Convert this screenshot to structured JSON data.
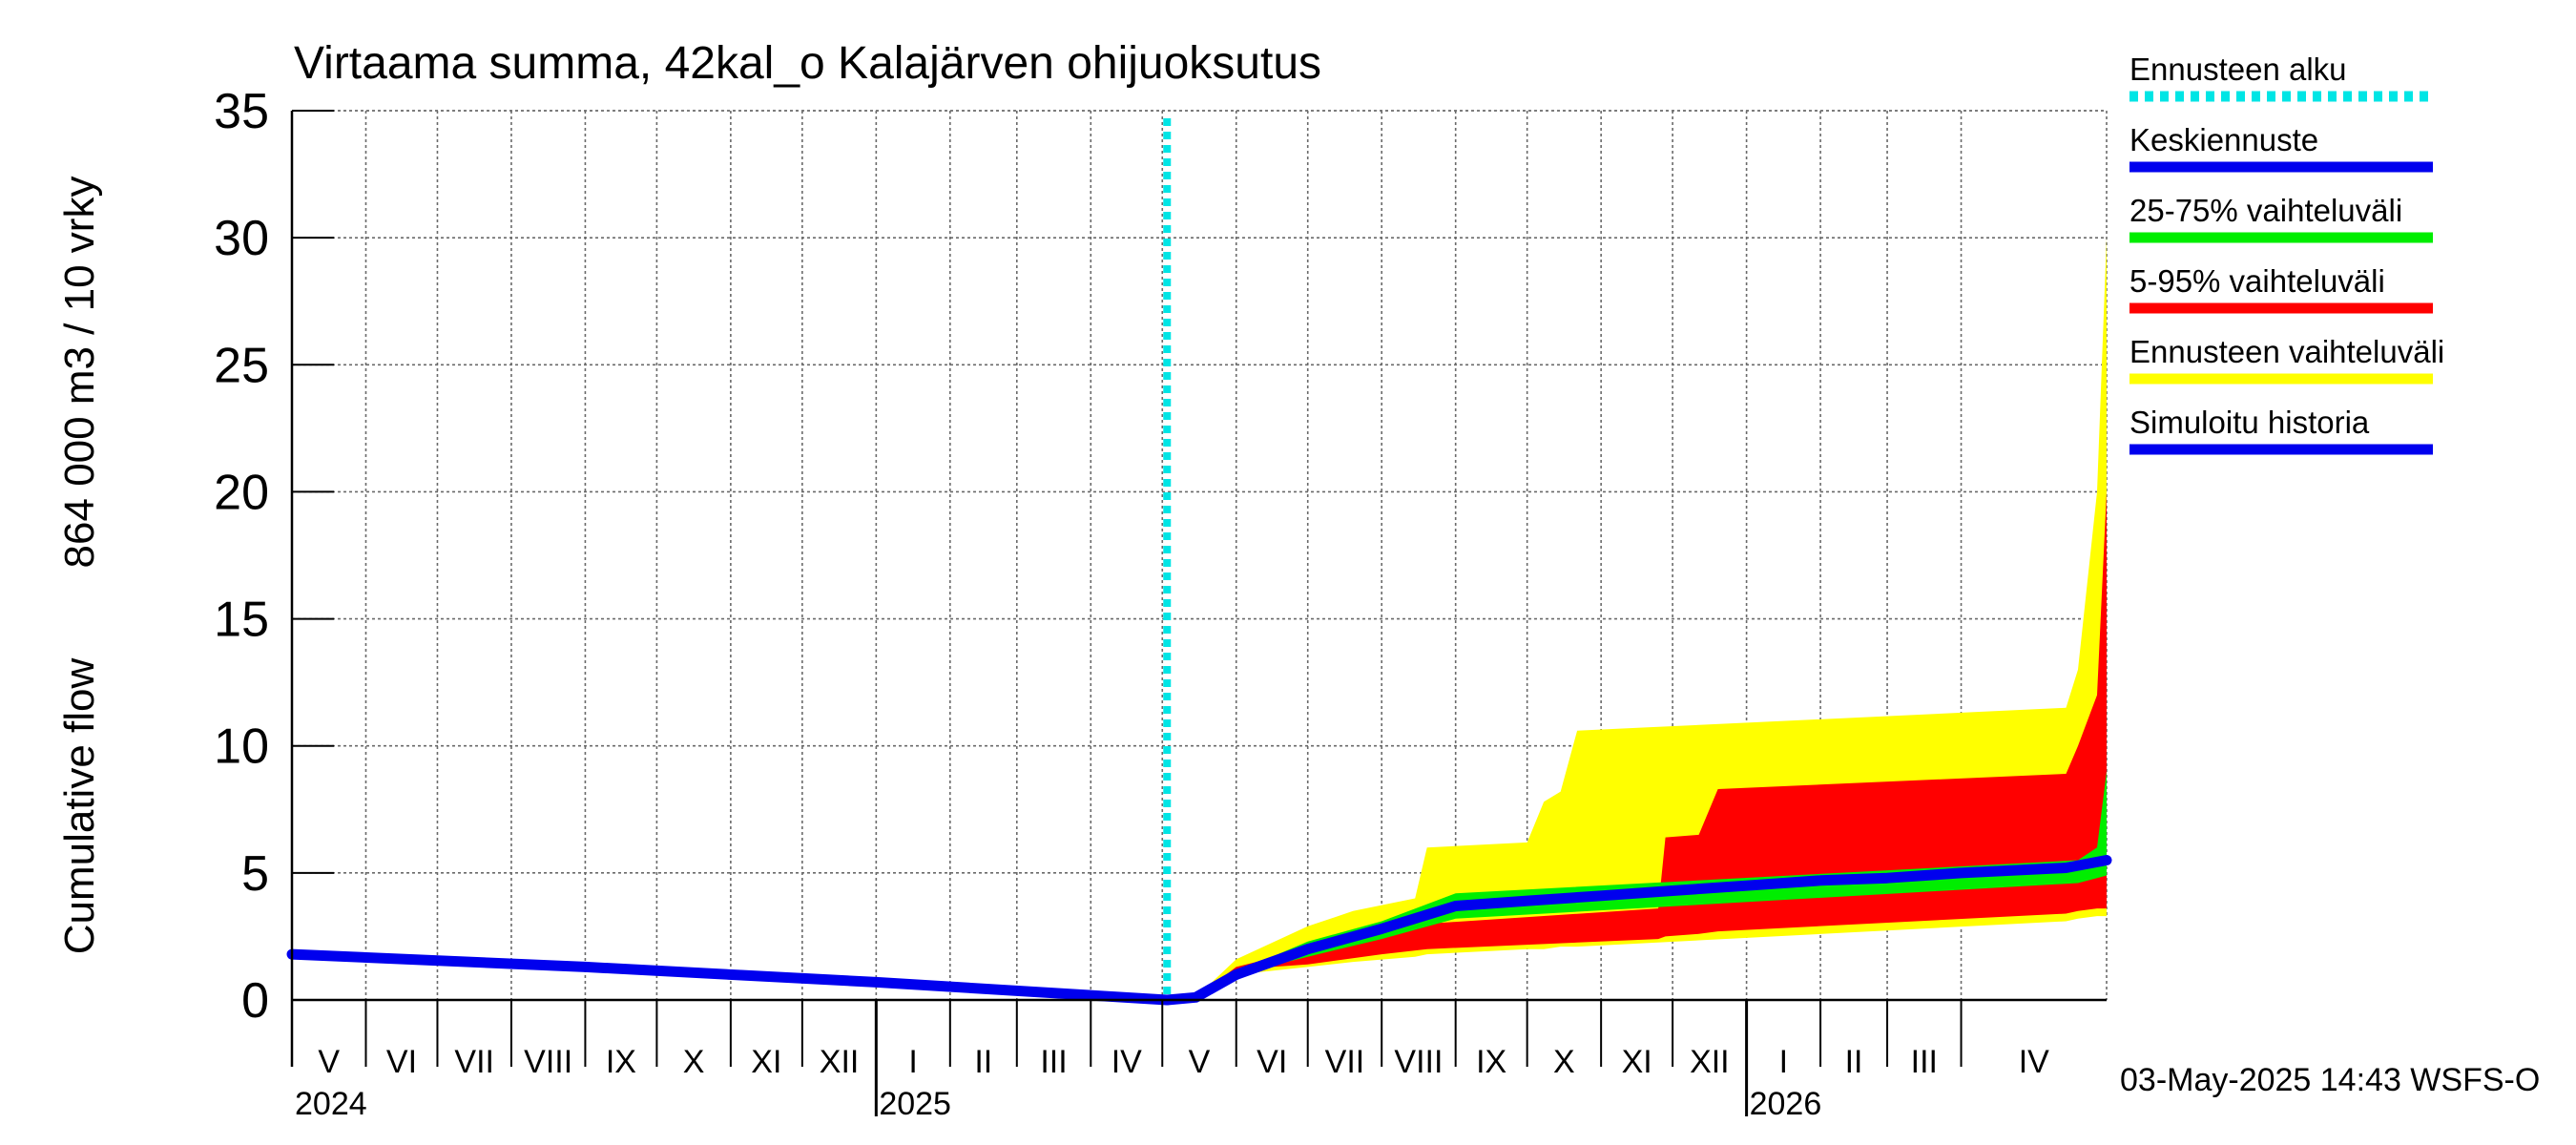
{
  "chart_data": {
    "type": "area",
    "title": "Virtaama summa, 42kal_o Kalajärven ohijuoksutus",
    "ylabel_line1": "Cumulative flow",
    "ylabel_line2": "864 000 m3 / 10 vrky",
    "ylim": [
      0,
      35
    ],
    "y_ticks": [
      0,
      5,
      10,
      15,
      20,
      25,
      30,
      35
    ],
    "xlim": [
      "2024-05-01",
      "2026-06-01"
    ],
    "grid": true,
    "months": [
      {
        "label": "V",
        "start": "2024-05-01"
      },
      {
        "label": "VI",
        "start": "2024-06-01"
      },
      {
        "label": "VII",
        "start": "2024-07-01"
      },
      {
        "label": "VIII",
        "start": "2024-08-01"
      },
      {
        "label": "IX",
        "start": "2024-09-01"
      },
      {
        "label": "X",
        "start": "2024-10-01"
      },
      {
        "label": "XI",
        "start": "2024-11-01"
      },
      {
        "label": "XII",
        "start": "2024-12-01"
      },
      {
        "label": "I",
        "start": "2025-01-01"
      },
      {
        "label": "II",
        "start": "2025-02-01"
      },
      {
        "label": "III",
        "start": "2025-03-01"
      },
      {
        "label": "IV",
        "start": "2025-04-01"
      },
      {
        "label": "V",
        "start": "2025-05-01"
      },
      {
        "label": "VI",
        "start": "2025-06-01"
      },
      {
        "label": "VII",
        "start": "2025-07-01"
      },
      {
        "label": "VIII",
        "start": "2025-08-01"
      },
      {
        "label": "IX",
        "start": "2025-09-01"
      },
      {
        "label": "X",
        "start": "2025-10-01"
      },
      {
        "label": "XI",
        "start": "2025-11-01"
      },
      {
        "label": "XII",
        "start": "2025-12-01"
      },
      {
        "label": "I",
        "start": "2026-01-01"
      },
      {
        "label": "II",
        "start": "2026-02-01"
      },
      {
        "label": "III",
        "start": "2026-03-01"
      },
      {
        "label": "IV",
        "start": "2026-04-01"
      }
    ],
    "years": [
      {
        "label": "2024",
        "date": "2024-05-01"
      },
      {
        "label": "2025",
        "date": "2025-01-01"
      },
      {
        "label": "2026",
        "date": "2026-01-01"
      }
    ],
    "forecast_start": "2025-05-03",
    "legend_position": "right",
    "legend": [
      {
        "label": "Ennusteen alku",
        "color": "#00e5e5",
        "style": "dotted"
      },
      {
        "label": "Keskiennuste",
        "color": "#0000ee",
        "style": "solid"
      },
      {
        "label": "25-75% vaihteluväli",
        "color": "#00ee00",
        "style": "solid"
      },
      {
        "label": "5-95% vaihteluväli",
        "color": "#ff0000",
        "style": "solid"
      },
      {
        "label": "Ennusteen vaihteluväli",
        "color": "#ffff00",
        "style": "solid"
      },
      {
        "label": "Simuloitu historia",
        "color": "#0000ee",
        "style": "solid"
      }
    ],
    "series": [
      {
        "name": "Ennusteen vaihteluväli",
        "kind": "band",
        "color": "#ffff00",
        "points": [
          {
            "x": "2025-05-03",
            "low": 0.0,
            "high": 0.0
          },
          {
            "x": "2025-05-15",
            "low": 0.1,
            "high": 0.1
          },
          {
            "x": "2025-06-01",
            "low": 1.0,
            "high": 1.6
          },
          {
            "x": "2025-07-01",
            "low": 1.3,
            "high": 2.9
          },
          {
            "x": "2025-07-20",
            "low": 1.5,
            "high": 3.5
          },
          {
            "x": "2025-08-15",
            "low": 1.7,
            "high": 4.0
          },
          {
            "x": "2025-08-20",
            "low": 1.8,
            "high": 6.0
          },
          {
            "x": "2025-10-01",
            "low": 2.0,
            "high": 6.2
          },
          {
            "x": "2025-10-08",
            "low": 2.0,
            "high": 7.8
          },
          {
            "x": "2025-10-15",
            "low": 2.1,
            "high": 8.2
          },
          {
            "x": "2025-10-22",
            "low": 2.1,
            "high": 10.6
          },
          {
            "x": "2026-05-15",
            "low": 3.1,
            "high": 11.5
          },
          {
            "x": "2026-05-20",
            "low": 3.2,
            "high": 13.0
          },
          {
            "x": "2026-05-28",
            "low": 3.3,
            "high": 20.0
          },
          {
            "x": "2026-06-01",
            "low": 3.3,
            "high": 30.0
          }
        ]
      },
      {
        "name": "5-95% vaihteluväli",
        "kind": "band",
        "color": "#ff0000",
        "points": [
          {
            "x": "2025-05-03",
            "low": 0.0,
            "high": 0.0
          },
          {
            "x": "2025-05-15",
            "low": 0.1,
            "high": 0.1
          },
          {
            "x": "2025-06-01",
            "low": 1.2,
            "high": 1.3
          },
          {
            "x": "2025-07-01",
            "low": 1.4,
            "high": 2.0
          },
          {
            "x": "2025-08-01",
            "low": 1.8,
            "high": 2.7
          },
          {
            "x": "2025-08-20",
            "low": 2.0,
            "high": 3.0
          },
          {
            "x": "2025-11-25",
            "low": 2.4,
            "high": 3.6
          },
          {
            "x": "2025-11-28",
            "low": 2.5,
            "high": 6.4
          },
          {
            "x": "2025-12-12",
            "low": 2.6,
            "high": 6.5
          },
          {
            "x": "2025-12-20",
            "low": 2.7,
            "high": 8.3
          },
          {
            "x": "2026-05-15",
            "low": 3.4,
            "high": 8.9
          },
          {
            "x": "2026-05-20",
            "low": 3.5,
            "high": 10.0
          },
          {
            "x": "2026-05-28",
            "low": 3.6,
            "high": 12.0
          },
          {
            "x": "2026-06-01",
            "low": 3.6,
            "high": 20.0
          }
        ]
      },
      {
        "name": "25-75% vaihteluväli",
        "kind": "band",
        "color": "#00ee00",
        "points": [
          {
            "x": "2025-05-03",
            "low": 0.0,
            "high": 0.0
          },
          {
            "x": "2025-05-15",
            "low": 0.1,
            "high": 0.1
          },
          {
            "x": "2025-06-01",
            "low": 1.0,
            "high": 1.1
          },
          {
            "x": "2025-07-01",
            "low": 1.7,
            "high": 2.3
          },
          {
            "x": "2025-08-01",
            "low": 2.4,
            "high": 3.1
          },
          {
            "x": "2025-09-01",
            "low": 3.2,
            "high": 4.2
          },
          {
            "x": "2026-05-20",
            "low": 4.6,
            "high": 5.5
          },
          {
            "x": "2026-05-28",
            "low": 4.8,
            "high": 6.0
          },
          {
            "x": "2026-06-01",
            "low": 4.9,
            "high": 9.0
          }
        ]
      },
      {
        "name": "Keskiennuste",
        "kind": "line",
        "color": "#0000ee",
        "points": [
          {
            "x": "2025-05-03",
            "y": 0.0
          },
          {
            "x": "2025-05-15",
            "y": 0.1
          },
          {
            "x": "2025-06-01",
            "y": 1.0
          },
          {
            "x": "2025-07-01",
            "y": 2.0
          },
          {
            "x": "2025-08-01",
            "y": 2.8
          },
          {
            "x": "2025-09-01",
            "y": 3.7
          },
          {
            "x": "2025-10-01",
            "y": 3.9
          },
          {
            "x": "2025-11-01",
            "y": 4.1
          },
          {
            "x": "2025-12-01",
            "y": 4.3
          },
          {
            "x": "2026-01-01",
            "y": 4.5
          },
          {
            "x": "2026-02-01",
            "y": 4.7
          },
          {
            "x": "2026-03-01",
            "y": 4.8
          },
          {
            "x": "2026-04-01",
            "y": 5.0
          },
          {
            "x": "2026-05-15",
            "y": 5.2
          },
          {
            "x": "2026-06-01",
            "y": 5.5
          }
        ]
      },
      {
        "name": "Simuloitu historia",
        "kind": "line",
        "color": "#0000ee",
        "points": [
          {
            "x": "2024-05-01",
            "y": 1.8
          },
          {
            "x": "2024-09-01",
            "y": 1.3
          },
          {
            "x": "2025-01-01",
            "y": 0.7
          },
          {
            "x": "2025-05-03",
            "y": 0.0
          }
        ]
      }
    ]
  },
  "footer": {
    "timestamp": "03-May-2025 14:43 WSFS-O"
  }
}
